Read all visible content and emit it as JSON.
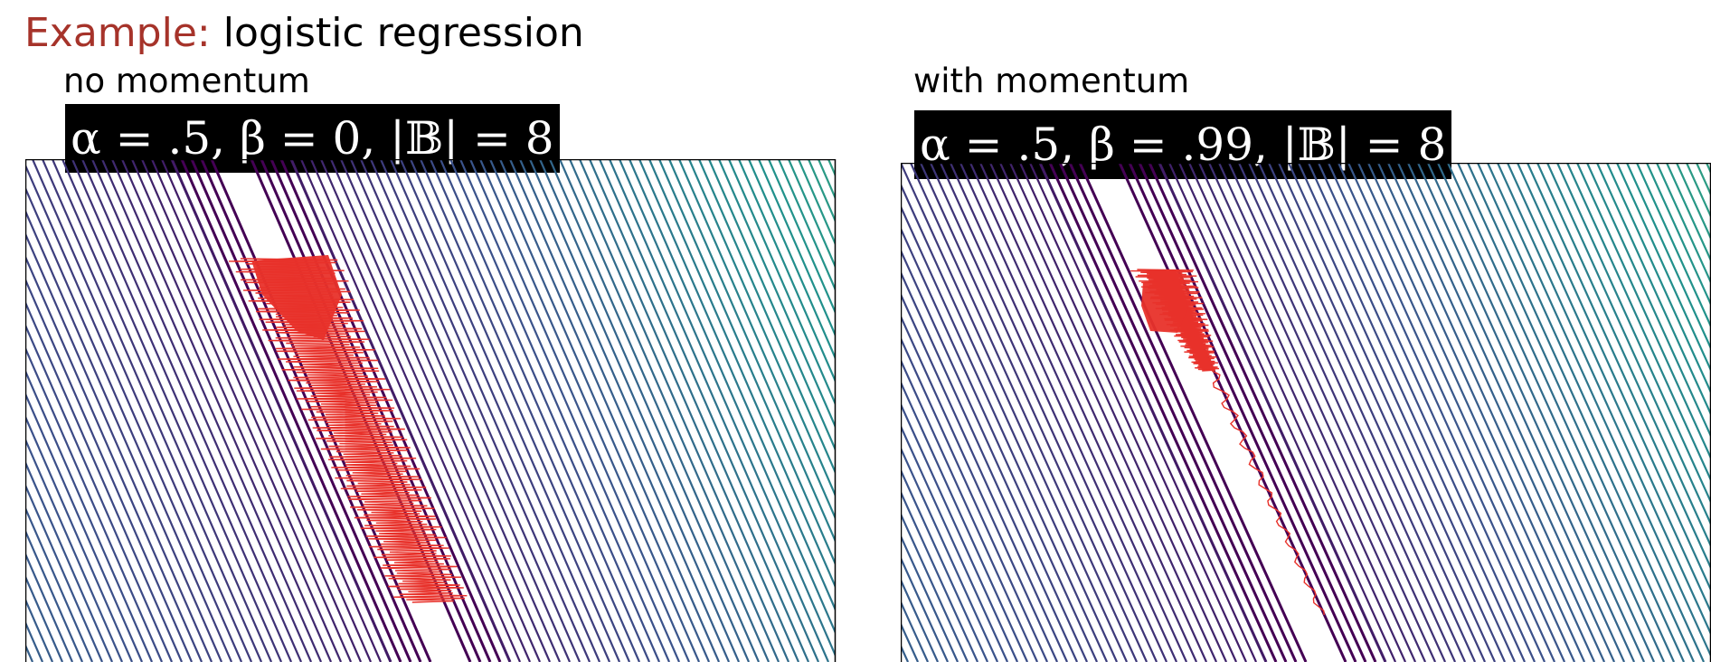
{
  "slide": {
    "title_keyword": "Example:",
    "title_rest": "logistic regression"
  },
  "panels": [
    {
      "label": "no momentum",
      "params": "α = .5, β = 0, |𝔹| = 8",
      "alpha": 0.5,
      "beta": 0,
      "batch_size": 8
    },
    {
      "label": "with momentum",
      "params": "α = .5, β = .99, |𝔹| = 8",
      "alpha": 0.5,
      "beta": 0.99,
      "batch_size": 8
    }
  ],
  "colors": {
    "title_keyword": "#a6332a",
    "trajectory": "#e8312a",
    "colormap": "viridis",
    "param_box_bg": "#000000",
    "param_box_text": "#ffffff"
  }
}
